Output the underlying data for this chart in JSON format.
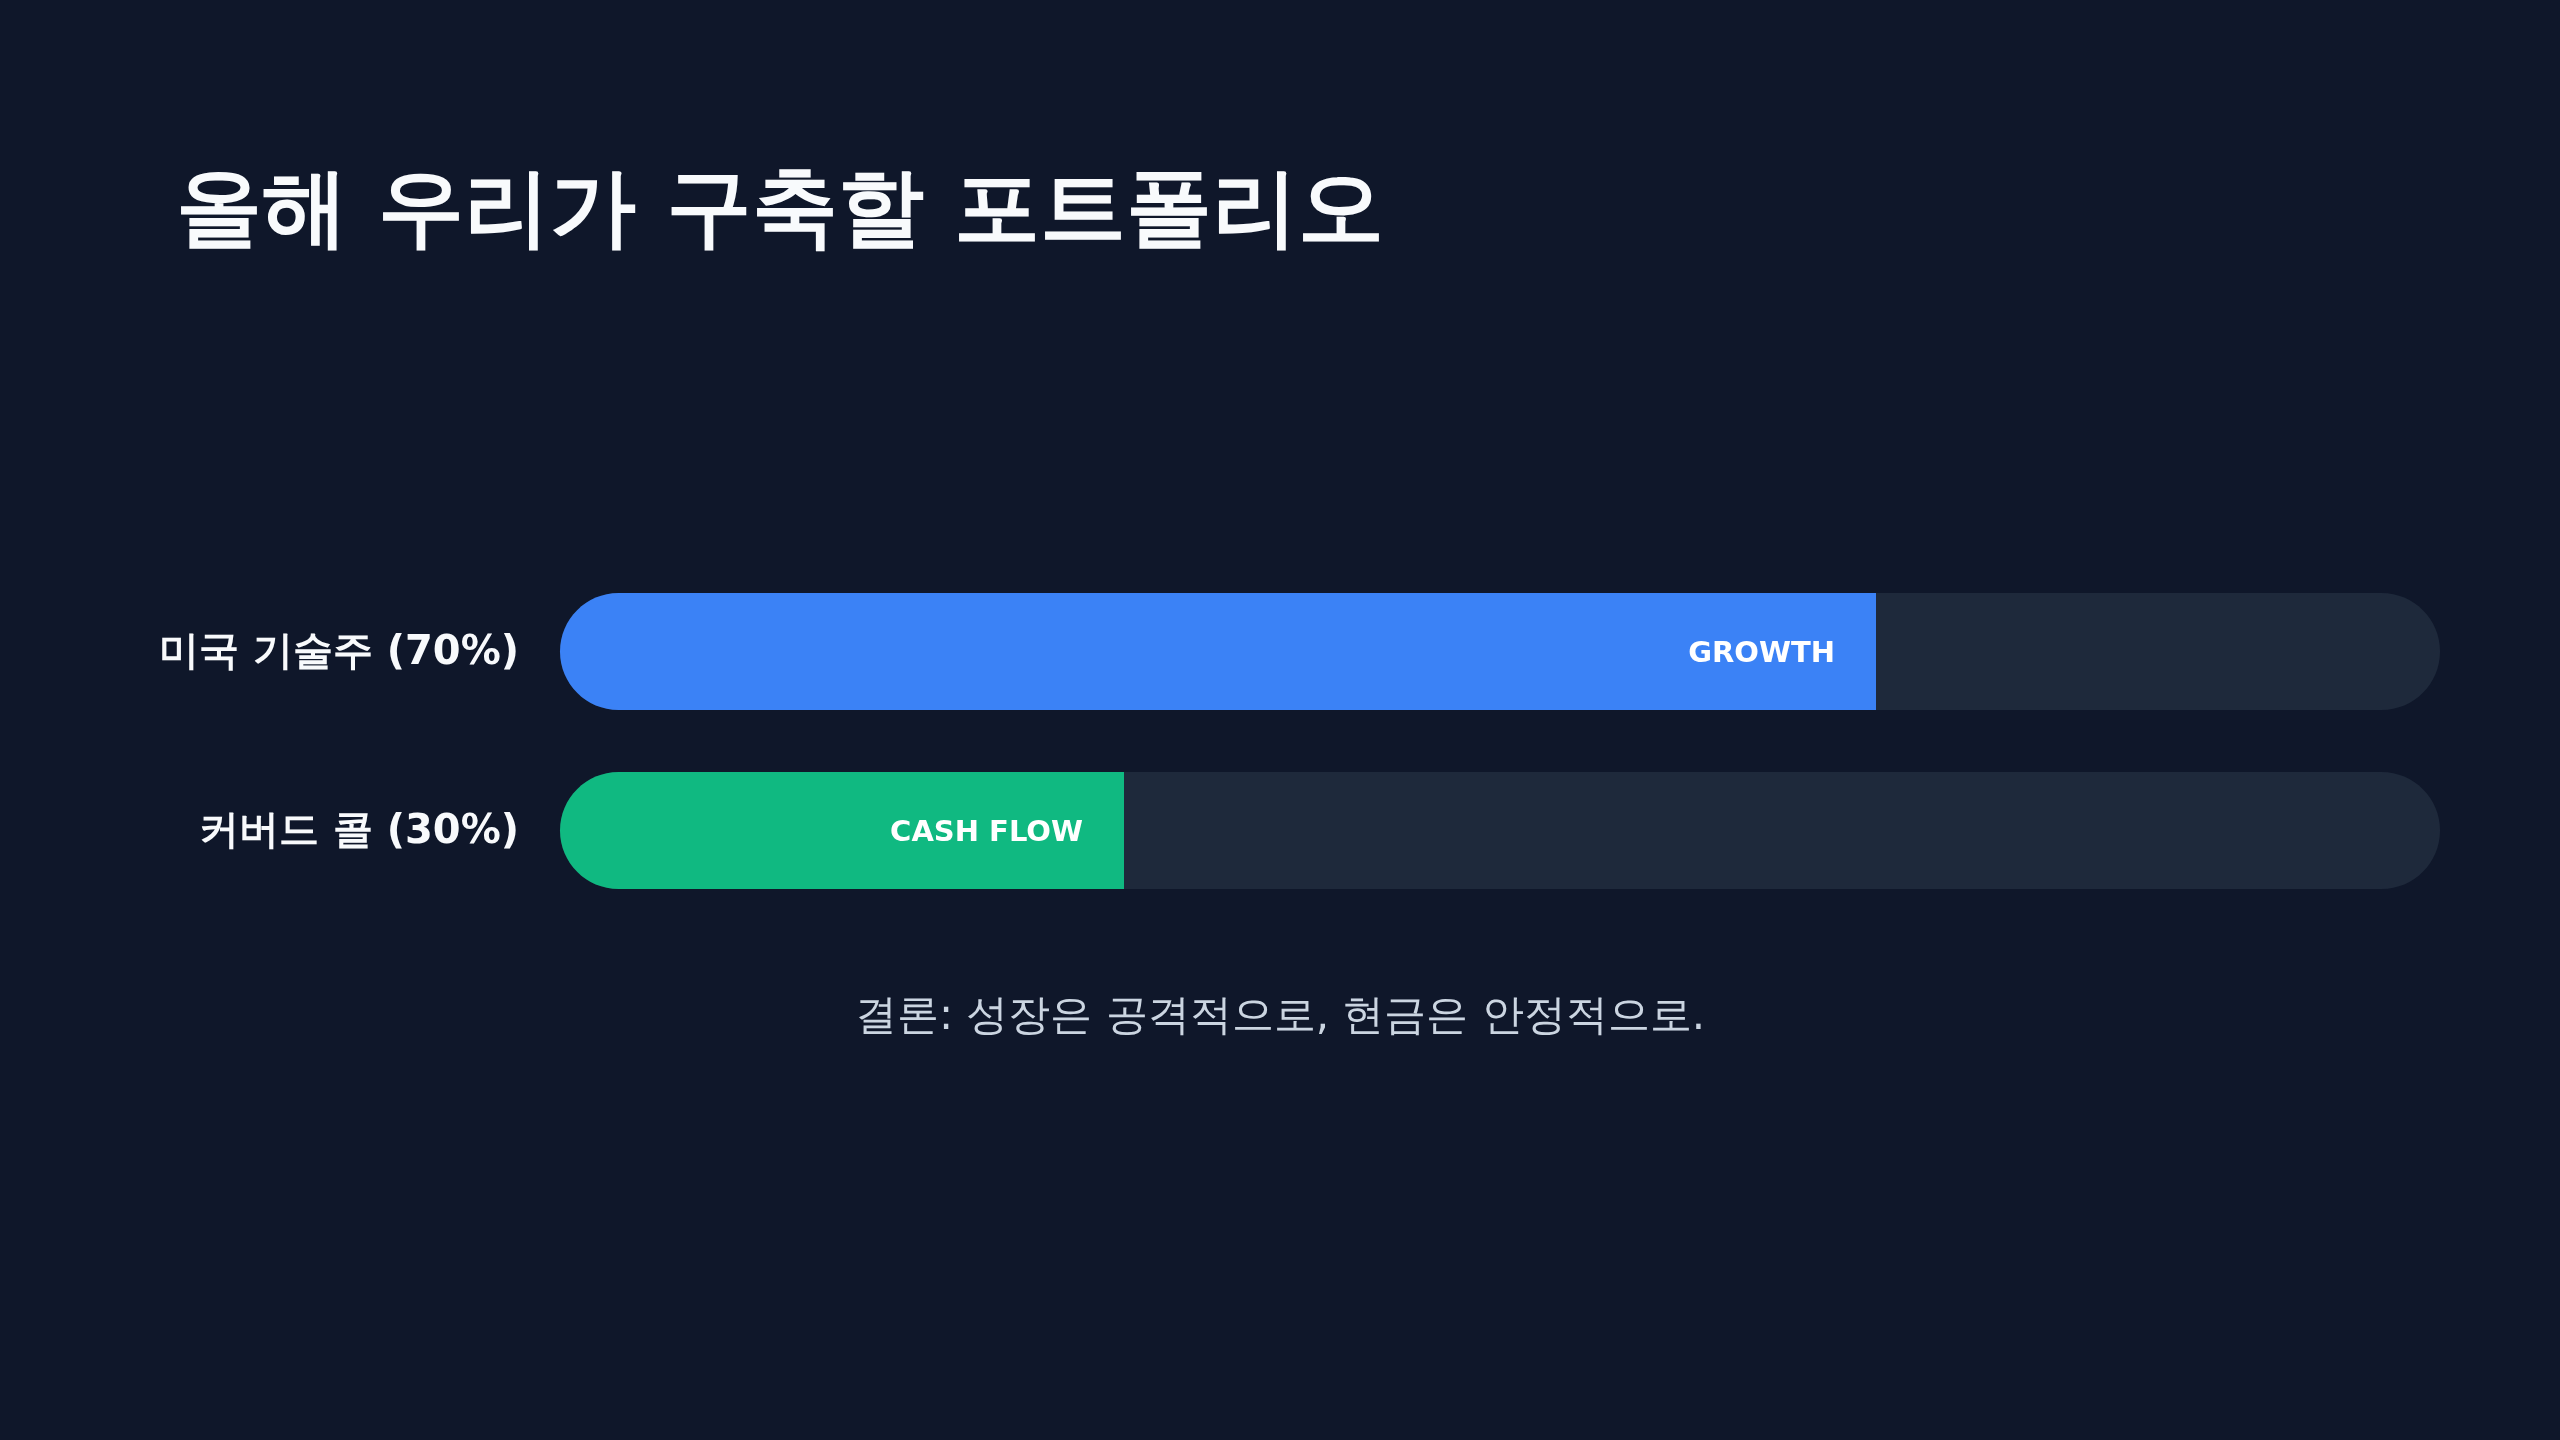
{
  "chart_data": {
    "type": "bar",
    "orientation": "horizontal",
    "title": "올해 우리가 구축할 포트폴리오",
    "categories": [
      "미국 기술주",
      "커버드 콜"
    ],
    "values": [
      70,
      30
    ],
    "colors": [
      "#3b82f6",
      "#10b981"
    ],
    "value_labels": [
      "(70%)",
      "(30%)"
    ],
    "xlim": [
      0,
      100
    ],
    "tick_labels": "y",
    "annotations": [
      {
        "text": "GROWTH",
        "x": 70,
        "y": "미국 기술주"
      },
      {
        "text": "CASH FLOW",
        "x": 30,
        "y": "커버드 콜"
      },
      "결론: 성장은 공격적으로, 현금은 안정적으로."
    ]
  }
}
